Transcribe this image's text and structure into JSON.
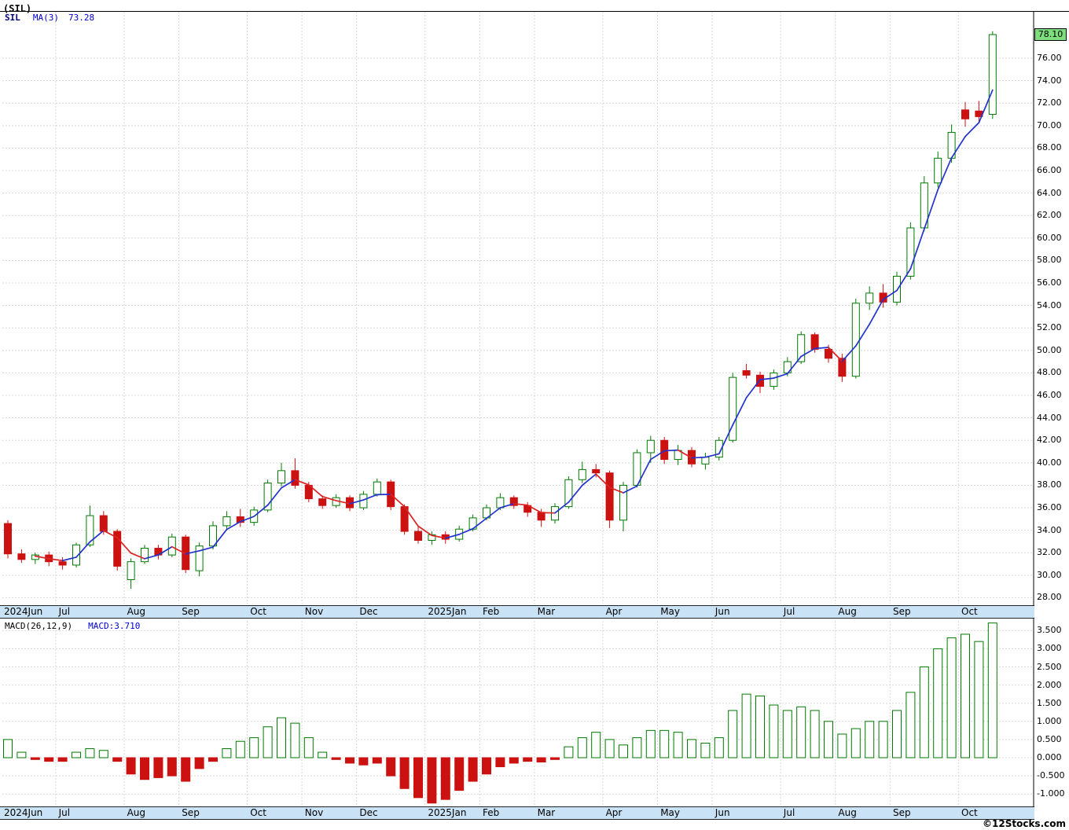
{
  "header": {
    "title": "(SIL)"
  },
  "legend": {
    "symbol": "SIL",
    "ma_label": "MA(3)",
    "ma_value": "73.28"
  },
  "macd_header": {
    "label": "MACD(26,12,9)",
    "value": "MACD:3.710"
  },
  "price_box": {
    "value": "78.10"
  },
  "footer": {
    "credit": "©12Stocks.com"
  },
  "chart_data": {
    "type": "candlestick",
    "symbol": "SIL",
    "title": "(SIL) weekly candlesticks with MA(3); lower panel MACD(26,12,9) histogram",
    "last_price": 78.1,
    "ma3_last": 73.28,
    "macd_last": 3.71,
    "price_axis": {
      "min": 28,
      "max": 76,
      "step": 2,
      "ticks": [
        "76.00",
        "74.00",
        "72.00",
        "70.00",
        "68.00",
        "66.00",
        "64.00",
        "62.00",
        "60.00",
        "58.00",
        "56.00",
        "54.00",
        "52.00",
        "50.00",
        "48.00",
        "46.00",
        "44.00",
        "42.00",
        "40.00",
        "38.00",
        "36.00",
        "34.00",
        "32.00",
        "30.00",
        "28.00"
      ]
    },
    "macd_axis": {
      "min": -1.0,
      "max": 3.5,
      "step": 0.5,
      "ticks": [
        "3.500",
        "3.000",
        "2.500",
        "2.000",
        "1.500",
        "1.000",
        "0.500",
        "0.000",
        "-0.500",
        "-1.000"
      ]
    },
    "months": [
      {
        "label": "2024Jun",
        "i": 0
      },
      {
        "label": "Jul",
        "i": 4
      },
      {
        "label": "Aug",
        "i": 9
      },
      {
        "label": "Sep",
        "i": 13
      },
      {
        "label": "Oct",
        "i": 18
      },
      {
        "label": "Nov",
        "i": 22
      },
      {
        "label": "Dec",
        "i": 26
      },
      {
        "label": "2025Jan",
        "i": 31
      },
      {
        "label": "Feb",
        "i": 35
      },
      {
        "label": "Mar",
        "i": 39
      },
      {
        "label": "Apr",
        "i": 44
      },
      {
        "label": "May",
        "i": 48
      },
      {
        "label": "Jun",
        "i": 52
      },
      {
        "label": "Jul",
        "i": 57
      },
      {
        "label": "Aug",
        "i": 61
      },
      {
        "label": "Sep",
        "i": 65
      },
      {
        "label": "Oct",
        "i": 70
      }
    ],
    "candles": [
      [
        34.6,
        34.9,
        31.5,
        31.9
      ],
      [
        31.9,
        32.3,
        31.1,
        31.4
      ],
      [
        31.4,
        32.0,
        31.0,
        31.8
      ],
      [
        31.8,
        32.1,
        30.8,
        31.2
      ],
      [
        31.2,
        31.6,
        30.5,
        30.9
      ],
      [
        30.9,
        32.9,
        30.7,
        32.7
      ],
      [
        32.7,
        36.2,
        32.5,
        35.3
      ],
      [
        35.3,
        35.7,
        33.6,
        33.9
      ],
      [
        33.9,
        34.1,
        30.4,
        30.8
      ],
      [
        29.6,
        31.5,
        28.8,
        31.2
      ],
      [
        31.2,
        32.7,
        31.0,
        32.4
      ],
      [
        32.4,
        32.7,
        31.4,
        31.8
      ],
      [
        31.8,
        33.7,
        31.6,
        33.4
      ],
      [
        33.4,
        33.6,
        30.2,
        30.5
      ],
      [
        30.4,
        32.9,
        29.9,
        32.6
      ],
      [
        32.6,
        34.8,
        32.3,
        34.4
      ],
      [
        34.4,
        35.7,
        34.0,
        35.2
      ],
      [
        35.2,
        35.9,
        34.3,
        34.7
      ],
      [
        34.7,
        36.1,
        34.4,
        35.8
      ],
      [
        35.8,
        38.5,
        35.6,
        38.2
      ],
      [
        38.2,
        40.0,
        37.9,
        39.3
      ],
      [
        39.3,
        40.4,
        37.7,
        38.0
      ],
      [
        38.0,
        38.3,
        36.5,
        36.8
      ],
      [
        36.8,
        37.1,
        35.9,
        36.2
      ],
      [
        36.2,
        37.2,
        36.0,
        36.9
      ],
      [
        36.9,
        37.1,
        35.7,
        36.0
      ],
      [
        36.0,
        37.5,
        35.8,
        37.2
      ],
      [
        37.2,
        38.6,
        37.0,
        38.3
      ],
      [
        38.3,
        38.5,
        35.8,
        36.1
      ],
      [
        36.1,
        36.3,
        33.6,
        33.9
      ],
      [
        33.9,
        34.3,
        32.8,
        33.1
      ],
      [
        33.1,
        33.9,
        32.7,
        33.6
      ],
      [
        33.6,
        33.9,
        32.8,
        33.2
      ],
      [
        33.2,
        34.4,
        33.0,
        34.1
      ],
      [
        34.1,
        35.4,
        33.9,
        35.1
      ],
      [
        35.1,
        36.3,
        34.9,
        36.0
      ],
      [
        36.0,
        37.3,
        35.8,
        36.9
      ],
      [
        36.9,
        37.1,
        35.9,
        36.2
      ],
      [
        36.2,
        36.5,
        35.2,
        35.6
      ],
      [
        35.6,
        35.9,
        34.3,
        34.9
      ],
      [
        34.9,
        36.4,
        34.6,
        36.1
      ],
      [
        36.1,
        38.8,
        35.9,
        38.5
      ],
      [
        38.5,
        40.1,
        38.2,
        39.4
      ],
      [
        39.4,
        39.9,
        38.7,
        39.1
      ],
      [
        39.1,
        39.3,
        34.2,
        34.9
      ],
      [
        34.9,
        38.3,
        33.9,
        38.0
      ],
      [
        38.0,
        41.2,
        37.8,
        40.9
      ],
      [
        40.9,
        42.4,
        40.0,
        42.0
      ],
      [
        42.0,
        42.3,
        39.9,
        40.3
      ],
      [
        40.3,
        41.6,
        39.8,
        41.1
      ],
      [
        41.1,
        41.4,
        39.6,
        39.9
      ],
      [
        39.9,
        40.9,
        39.4,
        40.5
      ],
      [
        40.5,
        42.3,
        40.2,
        42.0
      ],
      [
        42.0,
        48.0,
        41.8,
        47.6
      ],
      [
        48.2,
        48.8,
        47.5,
        47.8
      ],
      [
        47.8,
        48.1,
        46.2,
        46.8
      ],
      [
        46.8,
        48.3,
        46.5,
        48.0
      ],
      [
        48.0,
        49.4,
        47.7,
        49.0
      ],
      [
        49.0,
        51.7,
        48.8,
        51.4
      ],
      [
        51.4,
        51.6,
        49.8,
        50.1
      ],
      [
        50.1,
        50.5,
        48.9,
        49.3
      ],
      [
        49.3,
        49.7,
        47.2,
        47.7
      ],
      [
        47.7,
        54.6,
        47.5,
        54.2
      ],
      [
        54.2,
        55.7,
        53.6,
        55.1
      ],
      [
        55.1,
        55.9,
        53.8,
        54.3
      ],
      [
        54.3,
        57.0,
        54.0,
        56.6
      ],
      [
        56.6,
        61.4,
        56.3,
        60.9
      ],
      [
        60.9,
        65.5,
        60.6,
        64.9
      ],
      [
        64.9,
        67.7,
        64.5,
        67.1
      ],
      [
        67.1,
        70.1,
        66.7,
        69.4
      ],
      [
        71.4,
        72.1,
        69.9,
        70.6
      ],
      [
        71.3,
        72.2,
        70.3,
        70.8
      ],
      [
        71.0,
        78.4,
        70.6,
        78.1
      ]
    ],
    "macd_hist": [
      0.5,
      0.15,
      -0.05,
      -0.1,
      -0.1,
      0.15,
      0.25,
      0.2,
      -0.1,
      -0.45,
      -0.6,
      -0.55,
      -0.5,
      -0.65,
      -0.3,
      -0.1,
      0.25,
      0.45,
      0.55,
      0.85,
      1.1,
      0.95,
      0.55,
      0.15,
      -0.05,
      -0.15,
      -0.2,
      -0.15,
      -0.5,
      -0.85,
      -1.1,
      -1.25,
      -1.15,
      -0.9,
      -0.65,
      -0.45,
      -0.25,
      -0.15,
      -0.1,
      -0.12,
      -0.05,
      0.3,
      0.55,
      0.7,
      0.5,
      0.35,
      0.55,
      0.75,
      0.75,
      0.7,
      0.5,
      0.4,
      0.55,
      1.3,
      1.75,
      1.7,
      1.45,
      1.3,
      1.4,
      1.3,
      1.0,
      0.65,
      0.8,
      1.0,
      1.0,
      1.3,
      1.8,
      2.5,
      3.0,
      3.3,
      3.4,
      3.2,
      3.71
    ],
    "colors": {
      "up": "#007a00",
      "down": "#cc1111",
      "ma_up": "#2233cc",
      "ma_down": "#dd2222",
      "grid": "#d8d8d8",
      "strip_bg": "#c9e2f5",
      "price_box_bg": "#7ede7e"
    }
  }
}
